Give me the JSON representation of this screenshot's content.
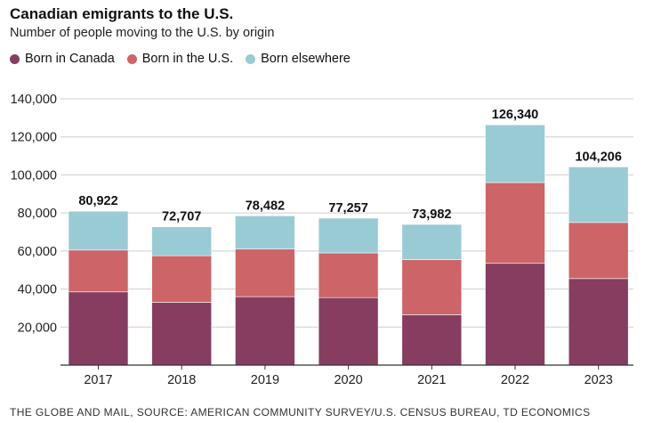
{
  "header": {
    "title": "Canadian emigrants to the U.S.",
    "subtitle": "Number of people moving to the U.S. by origin"
  },
  "legend": [
    {
      "label": "Born in Canada",
      "color": "#863D60"
    },
    {
      "label": "Born in the U.S.",
      "color": "#CD6467"
    },
    {
      "label": "Born elsewhere",
      "color": "#99CBD5"
    }
  ],
  "footer": {
    "source": "THE GLOBE AND MAIL, SOURCE: AMERICAN COMMUNITY SURVEY/U.S. CENSUS BUREAU, TD ECONOMICS"
  },
  "chart_data": {
    "type": "bar",
    "stacked": true,
    "title": "Canadian emigrants to the U.S.",
    "subtitle": "Number of people moving to the U.S. by origin",
    "xlabel": "",
    "ylabel": "",
    "ylim": [
      0,
      140000
    ],
    "yticks": [
      20000,
      40000,
      60000,
      80000,
      100000,
      120000,
      140000
    ],
    "ytick_labels": [
      "20,000",
      "40,000",
      "60,000",
      "80,000",
      "100,000",
      "120,000",
      "140,000"
    ],
    "grid": true,
    "legend_position": "top-left",
    "categories": [
      "2017",
      "2018",
      "2019",
      "2020",
      "2021",
      "2022",
      "2023"
    ],
    "series": [
      {
        "name": "Born in Canada",
        "color": "#863D60",
        "values": [
          38500,
          33000,
          36000,
          35500,
          26500,
          53500,
          45500
        ]
      },
      {
        "name": "Born in the U.S.",
        "color": "#CD6467",
        "values": [
          22000,
          24500,
          25000,
          23500,
          29000,
          42500,
          29500
        ]
      },
      {
        "name": "Born elsewhere",
        "color": "#99CBD5",
        "values": [
          20422,
          15207,
          17482,
          18257,
          18482,
          30340,
          29206
        ]
      }
    ],
    "totals": [
      80922,
      72707,
      78482,
      77257,
      73982,
      126340,
      104206
    ],
    "total_labels": [
      "80,922",
      "72,707",
      "78,482",
      "77,257",
      "73,982",
      "126,340",
      "104,206"
    ]
  }
}
